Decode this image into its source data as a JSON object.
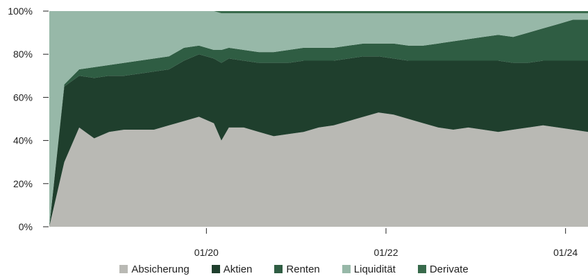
{
  "chart_data": {
    "type": "area",
    "stacked": true,
    "normalized": true,
    "x": [
      "2018-04",
      "2018-06",
      "2018-08",
      "2018-10",
      "2018-12",
      "2019-02",
      "2019-04",
      "2019-06",
      "2019-08",
      "2019-10",
      "2019-12",
      "2020-02",
      "2020-03",
      "2020-04",
      "2020-06",
      "2020-08",
      "2020-10",
      "2020-12",
      "2021-02",
      "2021-04",
      "2021-06",
      "2021-08",
      "2021-10",
      "2021-12",
      "2022-02",
      "2022-04",
      "2022-06",
      "2022-08",
      "2022-10",
      "2022-12",
      "2023-02",
      "2023-04",
      "2023-06",
      "2023-08",
      "2023-10",
      "2023-12",
      "2024-02",
      "2024-04"
    ],
    "xlim": [
      "2018-04",
      "2024-04"
    ],
    "x_ticks": [
      "01/20",
      "01/22",
      "01/24"
    ],
    "x_tick_dates": [
      "2020-01",
      "2022-01",
      "2024-01"
    ],
    "y_ticks": [
      "0%",
      "20%",
      "40%",
      "60%",
      "80%",
      "100%"
    ],
    "ylim": [
      0,
      100
    ],
    "series": [
      {
        "name": "Absicherung",
        "color": "#b9b9b4",
        "values": [
          0,
          30,
          46,
          41,
          44,
          45,
          45,
          45,
          47,
          49,
          51,
          48,
          40,
          46,
          46,
          44,
          42,
          43,
          44,
          46,
          47,
          49,
          51,
          53,
          52,
          50,
          48,
          46,
          45,
          46,
          45,
          44,
          45,
          46,
          47,
          46,
          45,
          44
        ]
      },
      {
        "name": "Aktien",
        "color": "#1f3f2d",
        "values": [
          0,
          35,
          24,
          28,
          26,
          25,
          26,
          27,
          26,
          28,
          29,
          30,
          36,
          32,
          31,
          32,
          34,
          33,
          33,
          31,
          30,
          29,
          28,
          26,
          26,
          27,
          29,
          31,
          32,
          31,
          32,
          33,
          31,
          30,
          30,
          31,
          32,
          33
        ]
      },
      {
        "name": "Renten",
        "color": "#2f5d43",
        "values": [
          0,
          1,
          3,
          5,
          5,
          6,
          6,
          6,
          6,
          6,
          4,
          4,
          6,
          5,
          5,
          5,
          5,
          6,
          6,
          6,
          6,
          6,
          6,
          6,
          7,
          7,
          7,
          8,
          9,
          10,
          11,
          12,
          12,
          14,
          15,
          17,
          19,
          19
        ]
      },
      {
        "name": "Liquidität",
        "color": "#97b8a8",
        "values": [
          100,
          34,
          27,
          26,
          25,
          24,
          23,
          22,
          21,
          17,
          16,
          18,
          17,
          16,
          17,
          18,
          18,
          17,
          16,
          16,
          16,
          15,
          14,
          14,
          14,
          15,
          15,
          14,
          13,
          12,
          11,
          10,
          11,
          9,
          7,
          5,
          3,
          3
        ]
      },
      {
        "name": "Derivate",
        "color": "#386a4b",
        "values": [
          0,
          0,
          0,
          0,
          0,
          0,
          0,
          0,
          0,
          0,
          0,
          0,
          1,
          1,
          1,
          1,
          1,
          1,
          1,
          1,
          1,
          1,
          1,
          1,
          1,
          1,
          1,
          1,
          1,
          1,
          1,
          1,
          1,
          1,
          1,
          1,
          1,
          1
        ]
      }
    ],
    "legend": "bottom-center",
    "grid": false
  }
}
